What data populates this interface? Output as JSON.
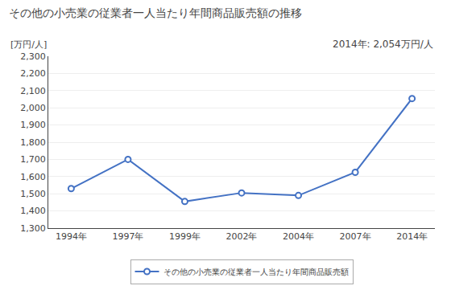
{
  "chart_data": {
    "type": "line",
    "title": "その他の小売業の従業者一人当たり年間商品販売額の推移",
    "ylabel": "[万円/人]",
    "annotation": "2014年: 2,054万円/人",
    "categories": [
      "1994年",
      "1997年",
      "1999年",
      "2002年",
      "2004年",
      "2007年",
      "2014年"
    ],
    "series": [
      {
        "name": "その他の小売業の従業者一人当たり年間商品販売額",
        "color": "#4472C4",
        "values": [
          1530,
          1700,
          1455,
          1505,
          1490,
          1625,
          2054
        ]
      }
    ],
    "ylim": [
      1300,
      2300
    ],
    "yticks": [
      {
        "value": 1300,
        "label": "1,300"
      },
      {
        "value": 1400,
        "label": "1,400"
      },
      {
        "value": 1500,
        "label": "1,500"
      },
      {
        "value": 1600,
        "label": "1,600"
      },
      {
        "value": 1700,
        "label": "1,700"
      },
      {
        "value": 1800,
        "label": "1,800"
      },
      {
        "value": 1900,
        "label": "1,900"
      },
      {
        "value": 2000,
        "label": "2,000"
      },
      {
        "value": 2100,
        "label": "2,100"
      },
      {
        "value": 2200,
        "label": "2,200"
      },
      {
        "value": 2300,
        "label": "2,300"
      }
    ],
    "grid": true,
    "legend": "bottom",
    "marker": "circle"
  }
}
